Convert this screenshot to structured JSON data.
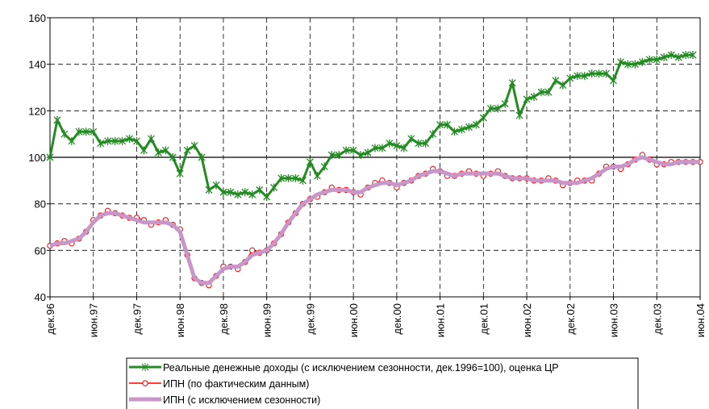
{
  "chart_data": {
    "type": "line",
    "categories": [
      "дек.96",
      null,
      null,
      null,
      null,
      null,
      "июн.97",
      null,
      null,
      null,
      null,
      null,
      "дек.97",
      null,
      null,
      null,
      null,
      null,
      "июн.98",
      null,
      null,
      null,
      null,
      null,
      "дек.98",
      null,
      null,
      null,
      null,
      null,
      "июн.99",
      null,
      null,
      null,
      null,
      null,
      "дек.99",
      null,
      null,
      null,
      null,
      null,
      "июн.00",
      null,
      null,
      null,
      null,
      null,
      "дек.00",
      null,
      null,
      null,
      null,
      null,
      "июн.01",
      null,
      null,
      null,
      null,
      null,
      "дек.01",
      null,
      null,
      null,
      null,
      null,
      "июн.02",
      null,
      null,
      null,
      null,
      null,
      "дек.02",
      null,
      null,
      null,
      null,
      null,
      "июн.03",
      null,
      null,
      null,
      null,
      null,
      "дек.03",
      null,
      null,
      null,
      null,
      null,
      "июн.04"
    ],
    "series": [
      {
        "name": "Реальные денежные доходы (с исключением сезонности, дек.1996=100), оценка ЦР",
        "color": "#228b22",
        "marker": "x",
        "values": [
          100,
          116,
          110,
          107,
          111,
          111,
          111,
          106,
          107,
          107,
          107,
          108,
          107,
          103,
          108,
          102,
          103,
          100,
          93,
          103,
          105,
          100,
          86,
          88,
          85,
          85,
          84,
          85,
          84,
          86,
          83,
          87,
          91,
          91,
          91,
          90,
          98,
          92,
          96,
          101,
          101,
          103,
          103,
          101,
          102,
          104,
          104,
          106,
          105,
          104,
          108,
          106,
          106,
          110,
          114,
          114,
          111,
          112,
          113,
          114,
          117,
          121,
          121,
          123,
          132,
          118,
          125,
          126,
          128,
          128,
          133,
          131,
          134,
          135,
          135,
          136,
          136,
          136,
          133,
          141,
          140,
          140,
          141,
          142,
          142,
          143,
          144,
          143,
          144,
          144,
          null
        ]
      },
      {
        "name": "ИПН (по фактическим данным)",
        "color": "#ff0000",
        "marker": "o",
        "values": [
          62,
          63,
          64,
          63,
          65,
          68,
          73,
          75,
          77,
          76,
          75,
          74,
          74,
          73,
          71,
          72,
          73,
          71,
          69,
          58,
          48,
          46,
          45,
          49,
          53,
          53,
          52,
          55,
          60,
          59,
          60,
          63,
          67,
          72,
          76,
          80,
          82,
          83,
          85,
          87,
          86,
          86,
          85,
          84,
          87,
          89,
          90,
          89,
          87,
          89,
          90,
          92,
          93,
          95,
          94,
          92,
          92,
          93,
          94,
          93,
          92,
          93,
          94,
          92,
          91,
          91,
          91,
          90,
          90,
          91,
          90,
          88,
          89,
          90,
          90,
          90,
          93,
          96,
          96,
          95,
          97,
          99,
          101,
          99,
          97,
          97,
          98,
          98,
          98,
          98,
          98
        ]
      },
      {
        "name": "ИПН (с исключением сезонности)",
        "color": "#c896c8",
        "marker": "none",
        "values": [
          62,
          63,
          63,
          64,
          65,
          68,
          72,
          75,
          76,
          76,
          75,
          74,
          73,
          72,
          72,
          72,
          72,
          71,
          68,
          58,
          48,
          46,
          46,
          49,
          52,
          53,
          53,
          55,
          58,
          59,
          60,
          63,
          67,
          72,
          76,
          80,
          82,
          84,
          85,
          86,
          86,
          86,
          85,
          85,
          87,
          88,
          89,
          89,
          88,
          89,
          90,
          92,
          93,
          94,
          94,
          93,
          92,
          93,
          93,
          93,
          93,
          93,
          93,
          92,
          91,
          91,
          91,
          90,
          90,
          90,
          90,
          89,
          89,
          89,
          90,
          91,
          93,
          95,
          96,
          96,
          97,
          99,
          100,
          99,
          98,
          97,
          97,
          98,
          98,
          98,
          98
        ]
      }
    ],
    "ylim": [
      40,
      160
    ],
    "yticks": [
      40,
      60,
      80,
      100,
      120,
      140,
      160
    ],
    "reference_line": 100,
    "grid": true
  }
}
